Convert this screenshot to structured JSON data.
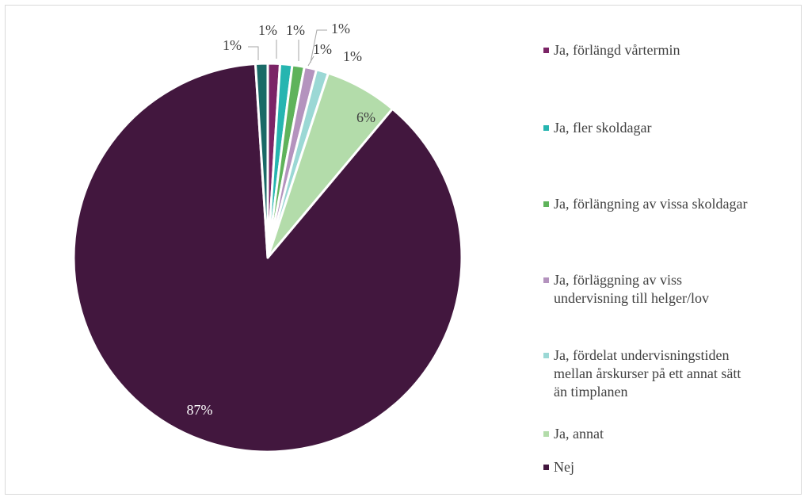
{
  "chart_data": {
    "type": "pie",
    "legend_position": "right",
    "slices": [
      {
        "label": "Ja, förlängd vårtermin",
        "value": 1,
        "display": "1%",
        "color": "#7B2466"
      },
      {
        "label": "Ja, fler skoldagar",
        "value": 1,
        "display": "1%",
        "color": "#26B5B0"
      },
      {
        "label": "Ja, förlängning av vissa skoldagar",
        "value": 1,
        "display": "1%",
        "color": "#5FB35B"
      },
      {
        "label": "Ja, förläggning av viss\nundervisning till helger/lov",
        "value": 1,
        "display": "1%",
        "color": "#B493BE"
      },
      {
        "label": "Ja, fördelat undervisningstiden\nmellan årskurser på ett annat sätt\nän timplanen",
        "value": 1,
        "display": "1%",
        "color": "#9BD8D5"
      },
      {
        "label": "Ja, annat",
        "value": 6,
        "display": "6%",
        "color": "#B3DCAA"
      },
      {
        "label": "Nej",
        "value": 87,
        "display": "87%",
        "color": "#42173E"
      },
      {
        "label": "",
        "value": 1,
        "display": "1%",
        "color": "#1A6A67"
      }
    ]
  }
}
